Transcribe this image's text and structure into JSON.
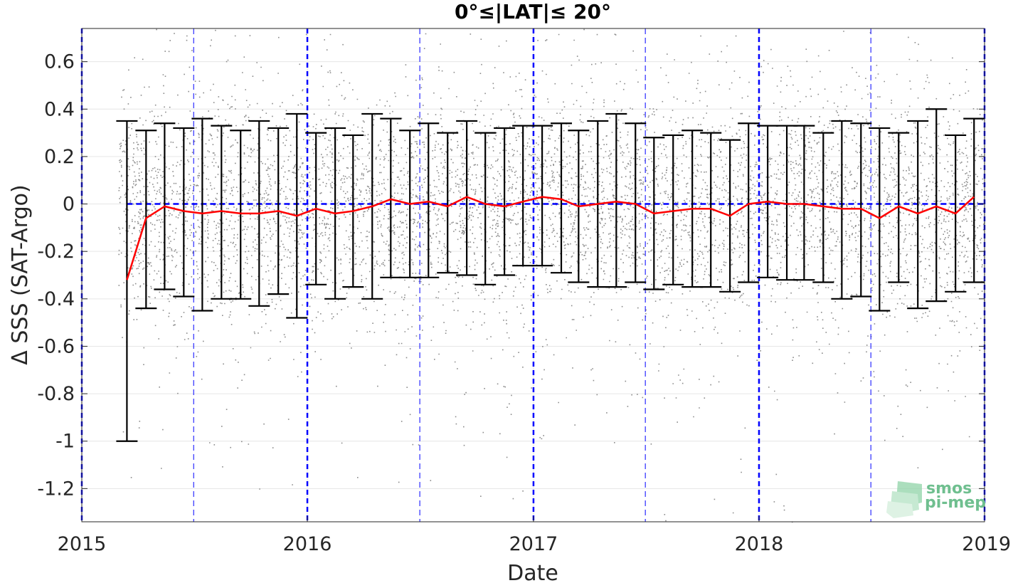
{
  "chart_data": {
    "type": "scatter",
    "title": "0°≤|LAT|≤ 20°",
    "xlabel": "Date",
    "ylabel": "Δ SSS (SAT-Argo)",
    "xlim": [
      "2015-01-01",
      "2019-01-01"
    ],
    "ylim": [
      -1.34,
      0.74
    ],
    "x_ticks": [
      "2015",
      "2016",
      "2017",
      "2018",
      "2019"
    ],
    "y_ticks": [
      "0.6",
      "0.4",
      "0.2",
      "0",
      "-0.2",
      "-0.4",
      "-0.6",
      "-0.8",
      "-1",
      "-1.2"
    ],
    "y_tick_values": [
      0.6,
      0.4,
      0.2,
      0,
      -0.2,
      -0.4,
      -0.6,
      -0.8,
      -1,
      -1.2
    ],
    "grid": true,
    "reference_lines": {
      "horizontal": 0,
      "year_boundaries": [
        "2015-01-01",
        "2016-01-01",
        "2017-01-01",
        "2018-01-01",
        "2019-01-01"
      ],
      "mid_year": [
        "2015-07-01",
        "2016-07-01",
        "2017-07-01",
        "2018-07-01"
      ]
    },
    "scatter_color": "#8c8c8c",
    "mean_line_color": "#ff0000",
    "errorbar_color": "#000000",
    "reference_color": "#0000ff",
    "monthly": {
      "x": [
        "2015-03",
        "2015-04",
        "2015-05",
        "2015-06",
        "2015-07",
        "2015-08",
        "2015-09",
        "2015-10",
        "2015-11",
        "2015-12",
        "2016-01",
        "2016-02",
        "2016-03",
        "2016-04",
        "2016-05",
        "2016-06",
        "2016-07",
        "2016-08",
        "2016-09",
        "2016-10",
        "2016-11",
        "2016-12",
        "2017-01",
        "2017-02",
        "2017-03",
        "2017-04",
        "2017-05",
        "2017-06",
        "2017-07",
        "2017-08",
        "2017-09",
        "2017-10",
        "2017-11",
        "2017-12",
        "2018-01",
        "2018-02",
        "2018-03",
        "2018-04",
        "2018-05",
        "2018-06",
        "2018-07",
        "2018-08",
        "2018-09",
        "2018-10",
        "2018-11",
        "2018-12"
      ],
      "mean": [
        -0.32,
        -0.06,
        -0.01,
        -0.03,
        -0.04,
        -0.03,
        -0.04,
        -0.04,
        -0.03,
        -0.05,
        -0.02,
        -0.04,
        -0.03,
        -0.01,
        0.02,
        0.0,
        0.01,
        -0.01,
        0.03,
        0.0,
        -0.01,
        0.01,
        0.03,
        0.02,
        -0.01,
        0.0,
        0.01,
        0.0,
        -0.04,
        -0.03,
        -0.02,
        -0.02,
        -0.05,
        0.0,
        0.01,
        0.0,
        0.0,
        -0.01,
        -0.02,
        -0.02,
        -0.06,
        -0.01,
        -0.04,
        -0.01,
        -0.04,
        0.03
      ],
      "upper": [
        0.35,
        0.31,
        0.34,
        0.32,
        0.36,
        0.33,
        0.31,
        0.35,
        0.32,
        0.38,
        0.3,
        0.32,
        0.29,
        0.38,
        0.36,
        0.31,
        0.34,
        0.3,
        0.35,
        0.3,
        0.32,
        0.33,
        0.33,
        0.34,
        0.31,
        0.35,
        0.38,
        0.34,
        0.28,
        0.29,
        0.31,
        0.3,
        0.27,
        0.34,
        0.33,
        0.33,
        0.33,
        0.3,
        0.35,
        0.34,
        0.32,
        0.3,
        0.35,
        0.4,
        0.29,
        0.36
      ],
      "lower": [
        -1.0,
        -0.44,
        -0.36,
        -0.39,
        -0.45,
        -0.4,
        -0.4,
        -0.43,
        -0.38,
        -0.48,
        -0.34,
        -0.4,
        -0.35,
        -0.4,
        -0.31,
        -0.31,
        -0.31,
        -0.29,
        -0.3,
        -0.34,
        -0.3,
        -0.26,
        -0.26,
        -0.29,
        -0.33,
        -0.35,
        -0.35,
        -0.33,
        -0.36,
        -0.34,
        -0.35,
        -0.35,
        -0.37,
        -0.33,
        -0.31,
        -0.32,
        -0.32,
        -0.33,
        -0.4,
        -0.39,
        -0.45,
        -0.33,
        -0.44,
        -0.41,
        -0.37,
        -0.33
      ]
    }
  },
  "logo": {
    "line1": "smos",
    "line2": "pi-mep"
  }
}
